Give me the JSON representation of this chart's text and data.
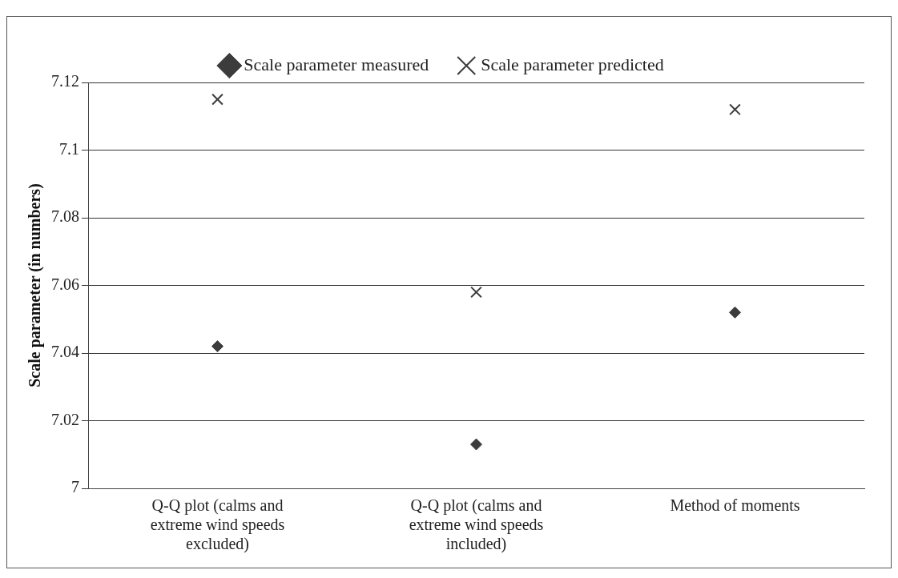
{
  "chart_data": {
    "type": "scatter",
    "ylabel": "Scale parameter (in numbers)",
    "categories": [
      "Q-Q plot (calms and extreme wind speeds excluded)",
      "Q-Q plot (calms and extreme wind speeds included)",
      "Method of moments"
    ],
    "series": [
      {
        "name": "Scale parameter measured",
        "color": "#3c3c3c",
        "marker": "diamond",
        "values": [
          7.042,
          7.013,
          7.052
        ]
      },
      {
        "name": "Scale parameter predicted",
        "color": "#3c3c3c",
        "marker": "cross",
        "values": [
          7.115,
          7.058,
          7.112
        ]
      }
    ],
    "ylim": [
      7,
      7.12
    ],
    "yticks": [
      7,
      7.02,
      7.04,
      7.06,
      7.08,
      7.1,
      7.12
    ],
    "grid": "y",
    "legend": "top"
  }
}
